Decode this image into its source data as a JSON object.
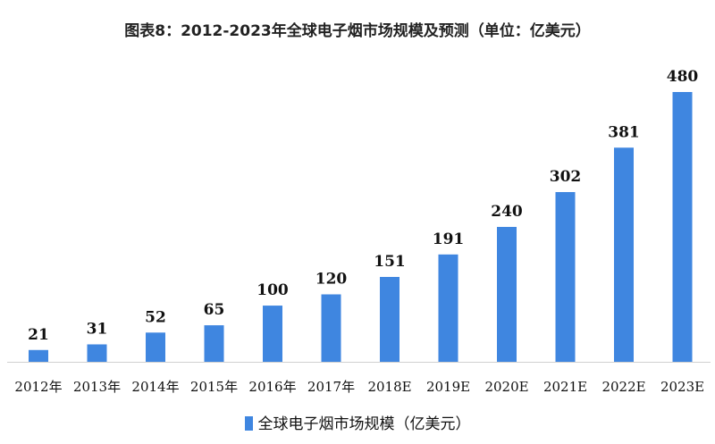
{
  "chart_data": {
    "type": "bar",
    "title": "图表8：2012-2023年全球电子烟市场规模及预测（单位：亿美元）",
    "categories": [
      "2012年",
      "2013年",
      "2014年",
      "2015年",
      "2016年",
      "2017年",
      "2018E",
      "2019E",
      "2020E",
      "2021E",
      "2022E",
      "2023E"
    ],
    "series": [
      {
        "name": "全球电子烟市场规模（亿美元）",
        "values": [
          21,
          31,
          52,
          65,
          100,
          120,
          151,
          191,
          240,
          302,
          381,
          480
        ],
        "color": "#3f86e0"
      }
    ],
    "xlabel": "",
    "ylabel": "",
    "ylim": [
      0,
      480
    ],
    "grid": false,
    "data_labels": true,
    "legend": "bottom"
  }
}
